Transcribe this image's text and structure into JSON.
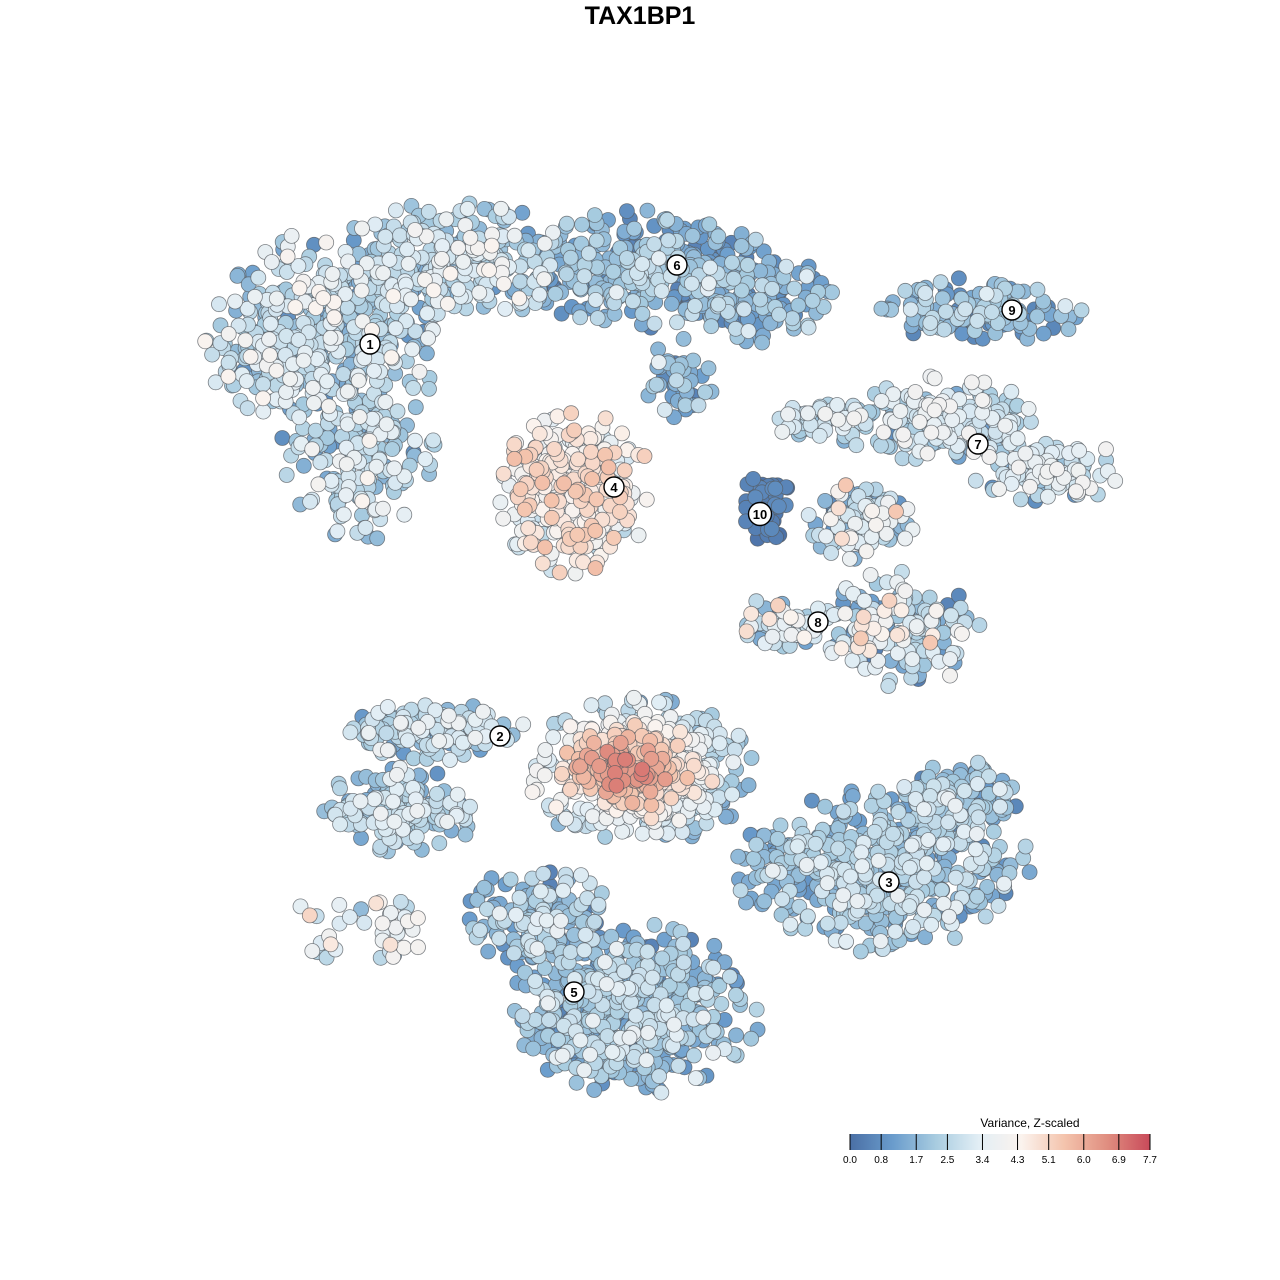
{
  "title": "TAX1BP1",
  "chart_data": {
    "type": "scatter",
    "title": "TAX1BP1",
    "xlabel": "",
    "ylabel": "",
    "grid": false,
    "point_count_approx": 6000,
    "clusters": [
      {
        "label": "1",
        "x": 370,
        "y": -344,
        "expr_mean": 2.6,
        "expr_range": [
          0.8,
          4.3
        ]
      },
      {
        "label": "2",
        "x": 500,
        "y": -736,
        "expr_mean": 2.4,
        "expr_range": [
          0.4,
          3.8
        ]
      },
      {
        "label": "3",
        "x": 889,
        "y": -882,
        "expr_mean": 2.0,
        "expr_range": [
          0.6,
          3.6
        ]
      },
      {
        "label": "4",
        "x": 614,
        "y": -487,
        "expr_mean": 4.1,
        "expr_range": [
          2.5,
          5.6
        ]
      },
      {
        "label": "5",
        "x": 574,
        "y": -992,
        "expr_mean": 1.9,
        "expr_range": [
          0.5,
          3.6
        ]
      },
      {
        "label": "6",
        "x": 677,
        "y": -265,
        "expr_mean": 1.7,
        "expr_range": [
          0.5,
          3.5
        ]
      },
      {
        "label": "7",
        "x": 978,
        "y": -444,
        "expr_mean": 2.7,
        "expr_range": [
          0.8,
          4.0
        ]
      },
      {
        "label": "8",
        "x": 818,
        "y": -622,
        "expr_mean": 2.4,
        "expr_range": [
          0.4,
          5.4
        ]
      },
      {
        "label": "9",
        "x": 1012,
        "y": -310,
        "expr_mean": 1.6,
        "expr_range": [
          0.6,
          3.6
        ]
      },
      {
        "label": "10",
        "x": 760,
        "y": -514,
        "expr_mean": 0.3,
        "expr_range": [
          0.0,
          1.2
        ]
      }
    ],
    "hotspot": {
      "label": "high-variance center",
      "x": 625,
      "y": -770,
      "expr_range": [
        5.0,
        7.7
      ]
    },
    "legend": {
      "title": "Variance, Z-scaled",
      "placement": "bottom-right",
      "min": 0.0,
      "max": 7.7,
      "ticks": [
        "0.0",
        "0.8",
        "1.7",
        "2.5",
        "3.4",
        "4.3",
        "5.1",
        "6.0",
        "6.9",
        "7.7"
      ],
      "colors": [
        "#4a6fa5",
        "#6a9ccc",
        "#a8cce0",
        "#e2eef5",
        "#fbf3ee",
        "#f4c4ad",
        "#e08e80",
        "#c94a5a"
      ]
    }
  }
}
